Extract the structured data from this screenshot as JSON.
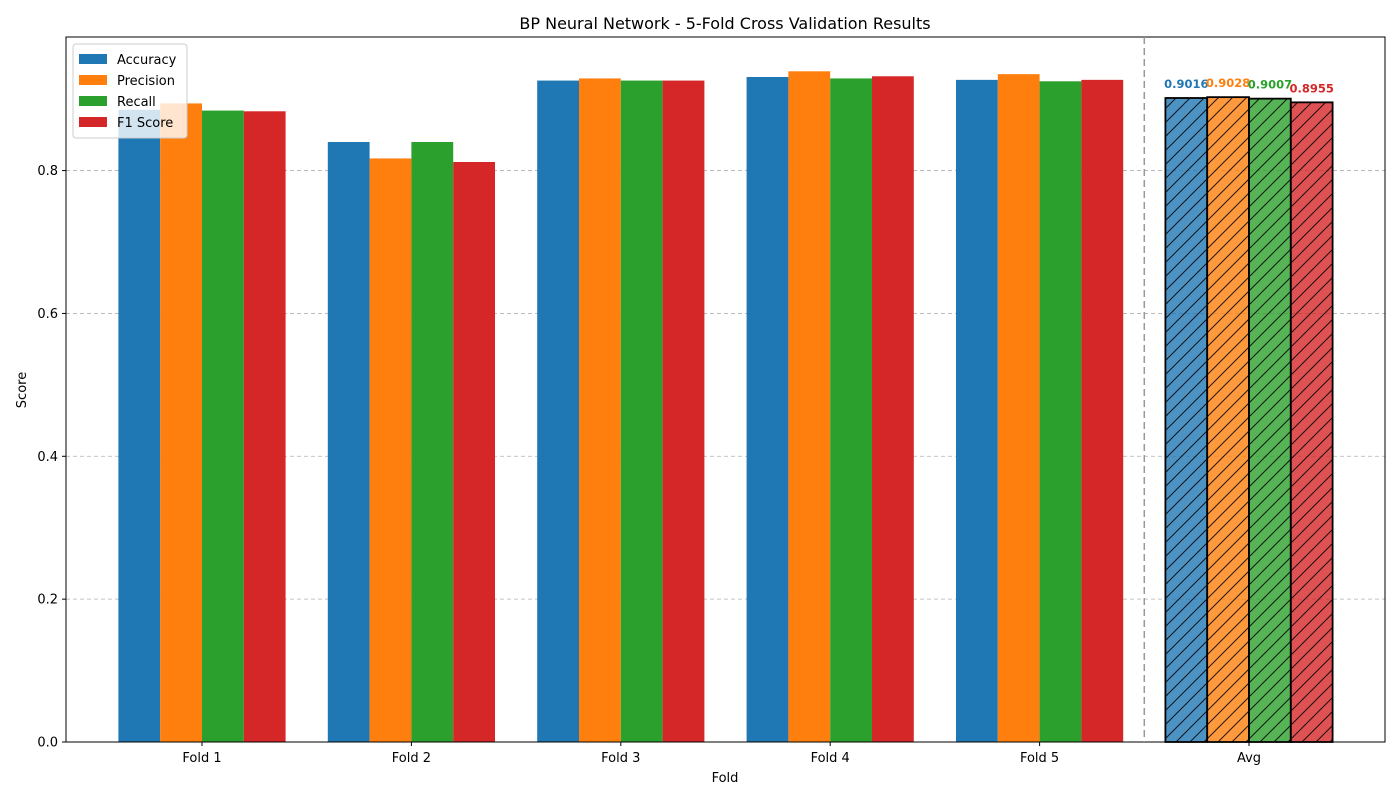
{
  "chart_data": {
    "type": "bar",
    "title": "BP Neural Network - 5-Fold Cross Validation Results",
    "xlabel": "Fold",
    "ylabel": "Score",
    "categories": [
      "Fold 1",
      "Fold 2",
      "Fold 3",
      "Fold 4",
      "Fold 5"
    ],
    "avg_category": "Avg",
    "ylim": [
      0,
      0.987
    ],
    "yticks": [
      "0.0",
      "0.2",
      "0.4",
      "0.6",
      "0.8"
    ],
    "grid": "y-dashed",
    "legend_position": "top-left",
    "series": [
      {
        "name": "Accuracy",
        "color": "#1f77b4",
        "values": [
          0.885,
          0.84,
          0.926,
          0.931,
          0.927
        ],
        "avg": 0.9016,
        "avg_label": "0.9016"
      },
      {
        "name": "Precision",
        "color": "#ff7f0e",
        "values": [
          0.894,
          0.817,
          0.929,
          0.939,
          0.935
        ],
        "avg": 0.9028,
        "avg_label": "0.9028"
      },
      {
        "name": "Recall",
        "color": "#2ca02c",
        "values": [
          0.884,
          0.84,
          0.926,
          0.929,
          0.925
        ],
        "avg": 0.9007,
        "avg_label": "0.9007"
      },
      {
        "name": "F1 Score",
        "color": "#d62728",
        "values": [
          0.883,
          0.812,
          0.926,
          0.932,
          0.927
        ],
        "avg": 0.8955,
        "avg_label": "0.8955"
      }
    ]
  }
}
